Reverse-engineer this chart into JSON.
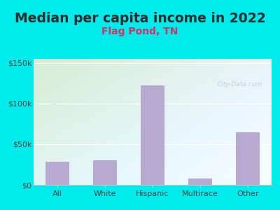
{
  "title": "Median per capita income in 2022",
  "subtitle": "Flag Pond, TN",
  "categories": [
    "All",
    "White",
    "Hispanic",
    "Multirace",
    "Other"
  ],
  "values": [
    28000,
    30000,
    122000,
    8000,
    65000
  ],
  "bar_color": "#b8a9d0",
  "title_color": "#2d2d2d",
  "subtitle_color": "#cc3366",
  "background_outer": "#00ecec",
  "background_inner_top_left": "#d4edd4",
  "background_inner_bottom_right": "#e8f4f8",
  "yticks": [
    0,
    50000,
    100000,
    150000
  ],
  "ytick_labels": [
    "$0",
    "$50k",
    "$100k",
    "$150k"
  ],
  "ylim": [
    0,
    155000
  ],
  "watermark": "City-Data.com",
  "title_fontsize": 13.5,
  "subtitle_fontsize": 10,
  "tick_fontsize": 8,
  "axis_label_color": "#444444"
}
